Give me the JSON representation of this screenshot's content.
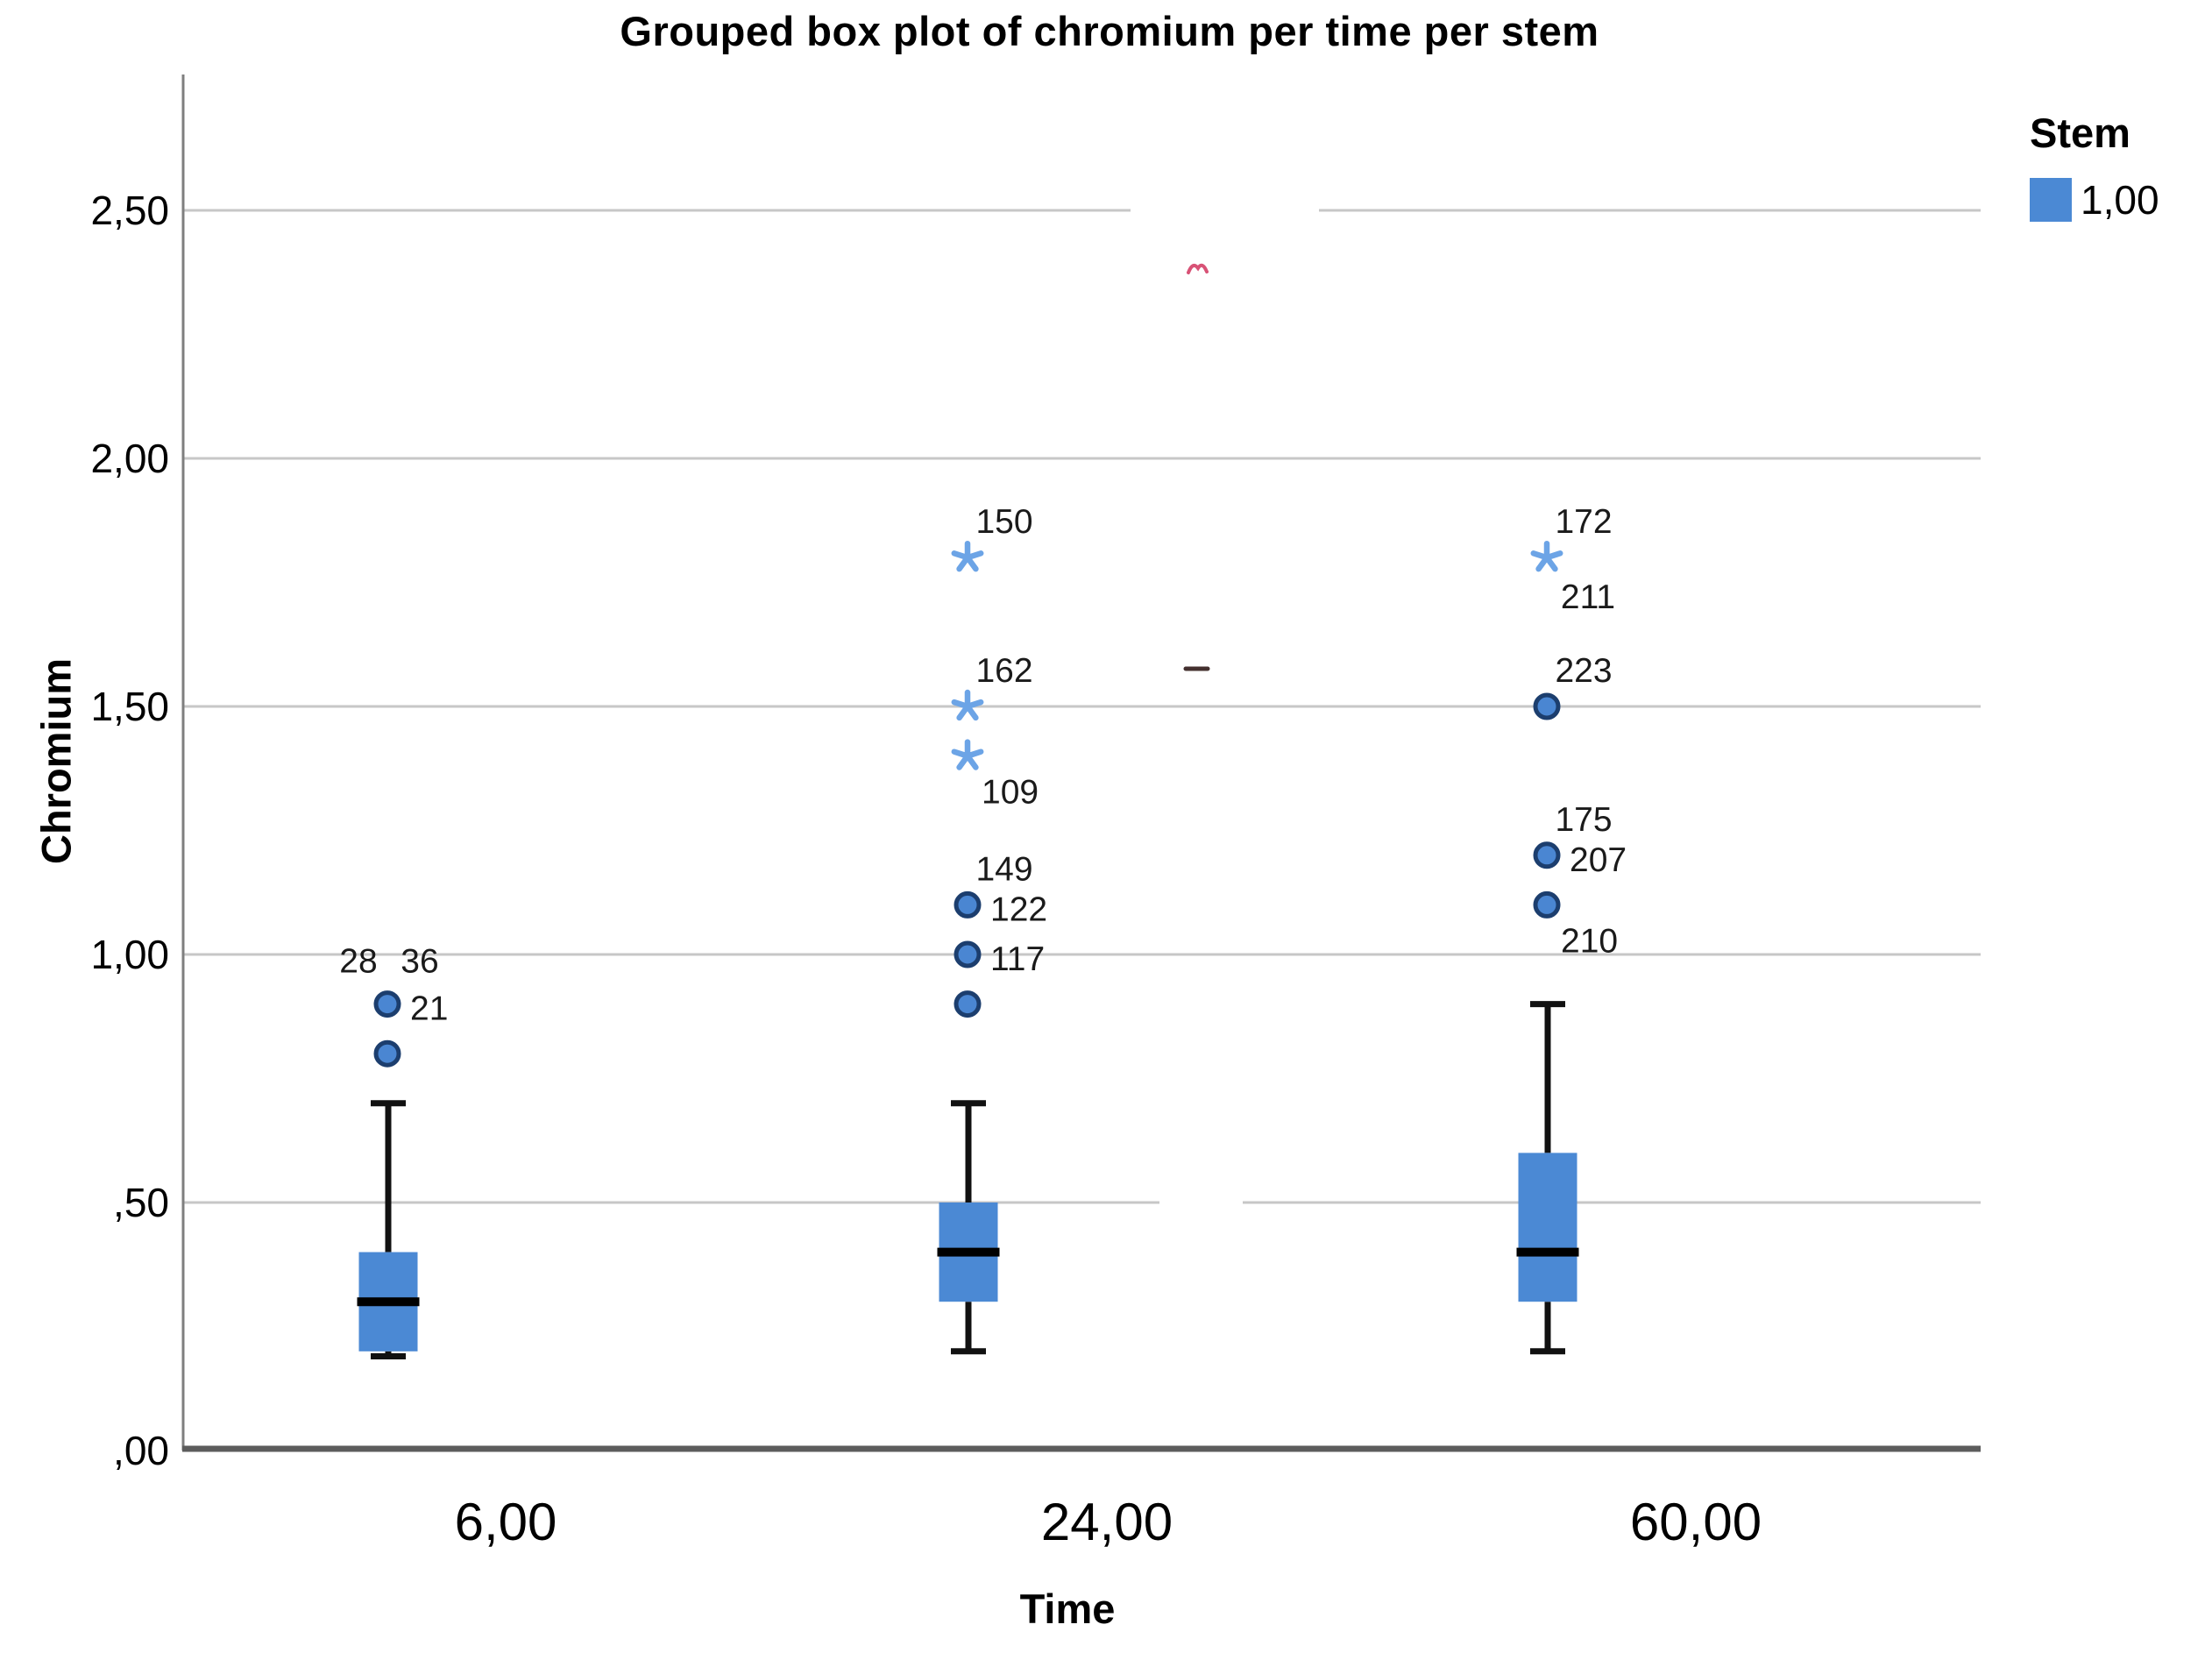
{
  "title": "Grouped box plot of chromium per time per stem",
  "axes": {
    "y_label": "Chromium",
    "x_label": "Time"
  },
  "legend": {
    "title": "Stem",
    "items": [
      {
        "label": "1,00",
        "color": "#4b89d4"
      }
    ]
  },
  "colors": {
    "box_fill": "#4b89d4",
    "median": "#000000",
    "whisker": "#111111",
    "outlier_fill": "#4a86d2",
    "outlier_stroke": "#1c3e6e",
    "star": "#6ca4e6",
    "grid": "#c7c7c7",
    "y_axis": "#7f7f7f",
    "x_axis": "#5c5c5c",
    "tick_text": "#000000",
    "outlier_label_text": "#1a1a1a",
    "artifact_red": "#d85276",
    "artifact_dash": "#44302f"
  },
  "chart_data": {
    "type": "boxplot",
    "title": "Grouped box plot of chromium per time per stem",
    "xlabel": "Time",
    "ylabel": "Chromium",
    "ylim": [
      0,
      2.77
    ],
    "grid": true,
    "legend_position": "top-right",
    "y_ticks": [
      {
        "value": 0.0,
        "label": ",00"
      },
      {
        "value": 0.5,
        "label": ",50"
      },
      {
        "value": 1.0,
        "label": "1,00"
      },
      {
        "value": 1.5,
        "label": "1,50"
      },
      {
        "value": 2.0,
        "label": "2,00"
      },
      {
        "value": 2.5,
        "label": "2,50"
      }
    ],
    "categories": [
      "6,00",
      "24,00",
      "60,00"
    ],
    "series_name": "Stem = 1,00",
    "groups": [
      {
        "category": "6,00",
        "q1": 0.2,
        "median": 0.3,
        "q3": 0.4,
        "whisker_low": 0.19,
        "whisker_high": 0.7,
        "outliers": [
          {
            "type": "circle",
            "value": 0.9,
            "labels": [
              {
                "text": "28",
                "pos": "above-left"
              },
              {
                "text": "36",
                "pos": "above-right"
              },
              {
                "text": "21",
                "pos": "right"
              }
            ]
          },
          {
            "type": "circle",
            "value": 0.8,
            "labels": []
          }
        ]
      },
      {
        "category": "24,00",
        "q1": 0.3,
        "median": 0.4,
        "q3": 0.5,
        "whisker_low": 0.2,
        "whisker_high": 0.7,
        "outliers": [
          {
            "type": "star",
            "value": 1.8,
            "labels": [
              {
                "text": "150",
                "pos": "above"
              }
            ]
          },
          {
            "type": "star",
            "value": 1.5,
            "labels": [
              {
                "text": "162",
                "pos": "above"
              }
            ]
          },
          {
            "type": "star",
            "value": 1.4,
            "labels": [
              {
                "text": "109",
                "pos": "below-right"
              }
            ]
          },
          {
            "type": "circle",
            "value": 1.1,
            "labels": [
              {
                "text": "149",
                "pos": "above"
              },
              {
                "text": "122",
                "pos": "right"
              }
            ]
          },
          {
            "type": "circle",
            "value": 1.0,
            "labels": [
              {
                "text": "117",
                "pos": "right"
              }
            ]
          },
          {
            "type": "circle",
            "value": 0.9,
            "labels": []
          }
        ]
      },
      {
        "category": "60,00",
        "q1": 0.3,
        "median": 0.4,
        "q3": 0.6,
        "whisker_low": 0.2,
        "whisker_high": 0.9,
        "outliers": [
          {
            "type": "star",
            "value": 1.8,
            "labels": [
              {
                "text": "172",
                "pos": "above"
              },
              {
                "text": "211",
                "pos": "below"
              }
            ]
          },
          {
            "type": "circle",
            "value": 1.5,
            "labels": [
              {
                "text": "223",
                "pos": "above"
              }
            ]
          },
          {
            "type": "circle",
            "value": 1.2,
            "labels": [
              {
                "text": "175",
                "pos": "above"
              },
              {
                "text": "207",
                "pos": "right"
              }
            ]
          },
          {
            "type": "circle",
            "value": 1.1,
            "labels": [
              {
                "text": "210",
                "pos": "below-right"
              }
            ]
          }
        ]
      }
    ],
    "annotations": [
      {
        "name": "red-mark",
        "note": "small pink squiggle artifact above 24,00 column near value 2.39"
      },
      {
        "name": "dark-dash",
        "note": "small dark dash artifact right of 24,00 column near value 1.58"
      }
    ]
  }
}
